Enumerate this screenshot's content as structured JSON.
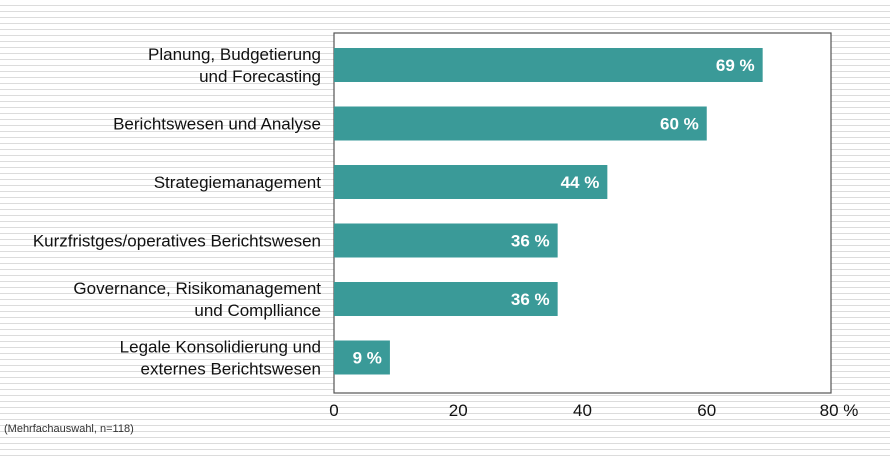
{
  "chart_data": {
    "type": "bar",
    "orientation": "horizontal",
    "categories": [
      [
        "Planung, Budgetierung",
        "und Forecasting"
      ],
      [
        "Berichtswesen und Analyse"
      ],
      [
        "Strategiemanagement"
      ],
      [
        "Kurzfristges/operatives Berichtswesen"
      ],
      [
        "Governance, Risikomanagement",
        "und Complliance"
      ],
      [
        "Legale Konsolidierung und",
        "externes Berichtswesen"
      ]
    ],
    "values": [
      69,
      60,
      44,
      36,
      36,
      9
    ],
    "value_labels": [
      "69 %",
      "60 %",
      "44 %",
      "36 %",
      "36 %",
      "9 %"
    ],
    "xlim": [
      0,
      80
    ],
    "xticks": [
      0,
      20,
      40,
      60,
      80
    ],
    "xtick_labels": [
      "0",
      "20",
      "40",
      "60",
      "80 %"
    ],
    "bar_color": "#3a9a98",
    "grid": false,
    "legend": "none"
  },
  "note": "(Mehrfachauswahl, n=118)"
}
